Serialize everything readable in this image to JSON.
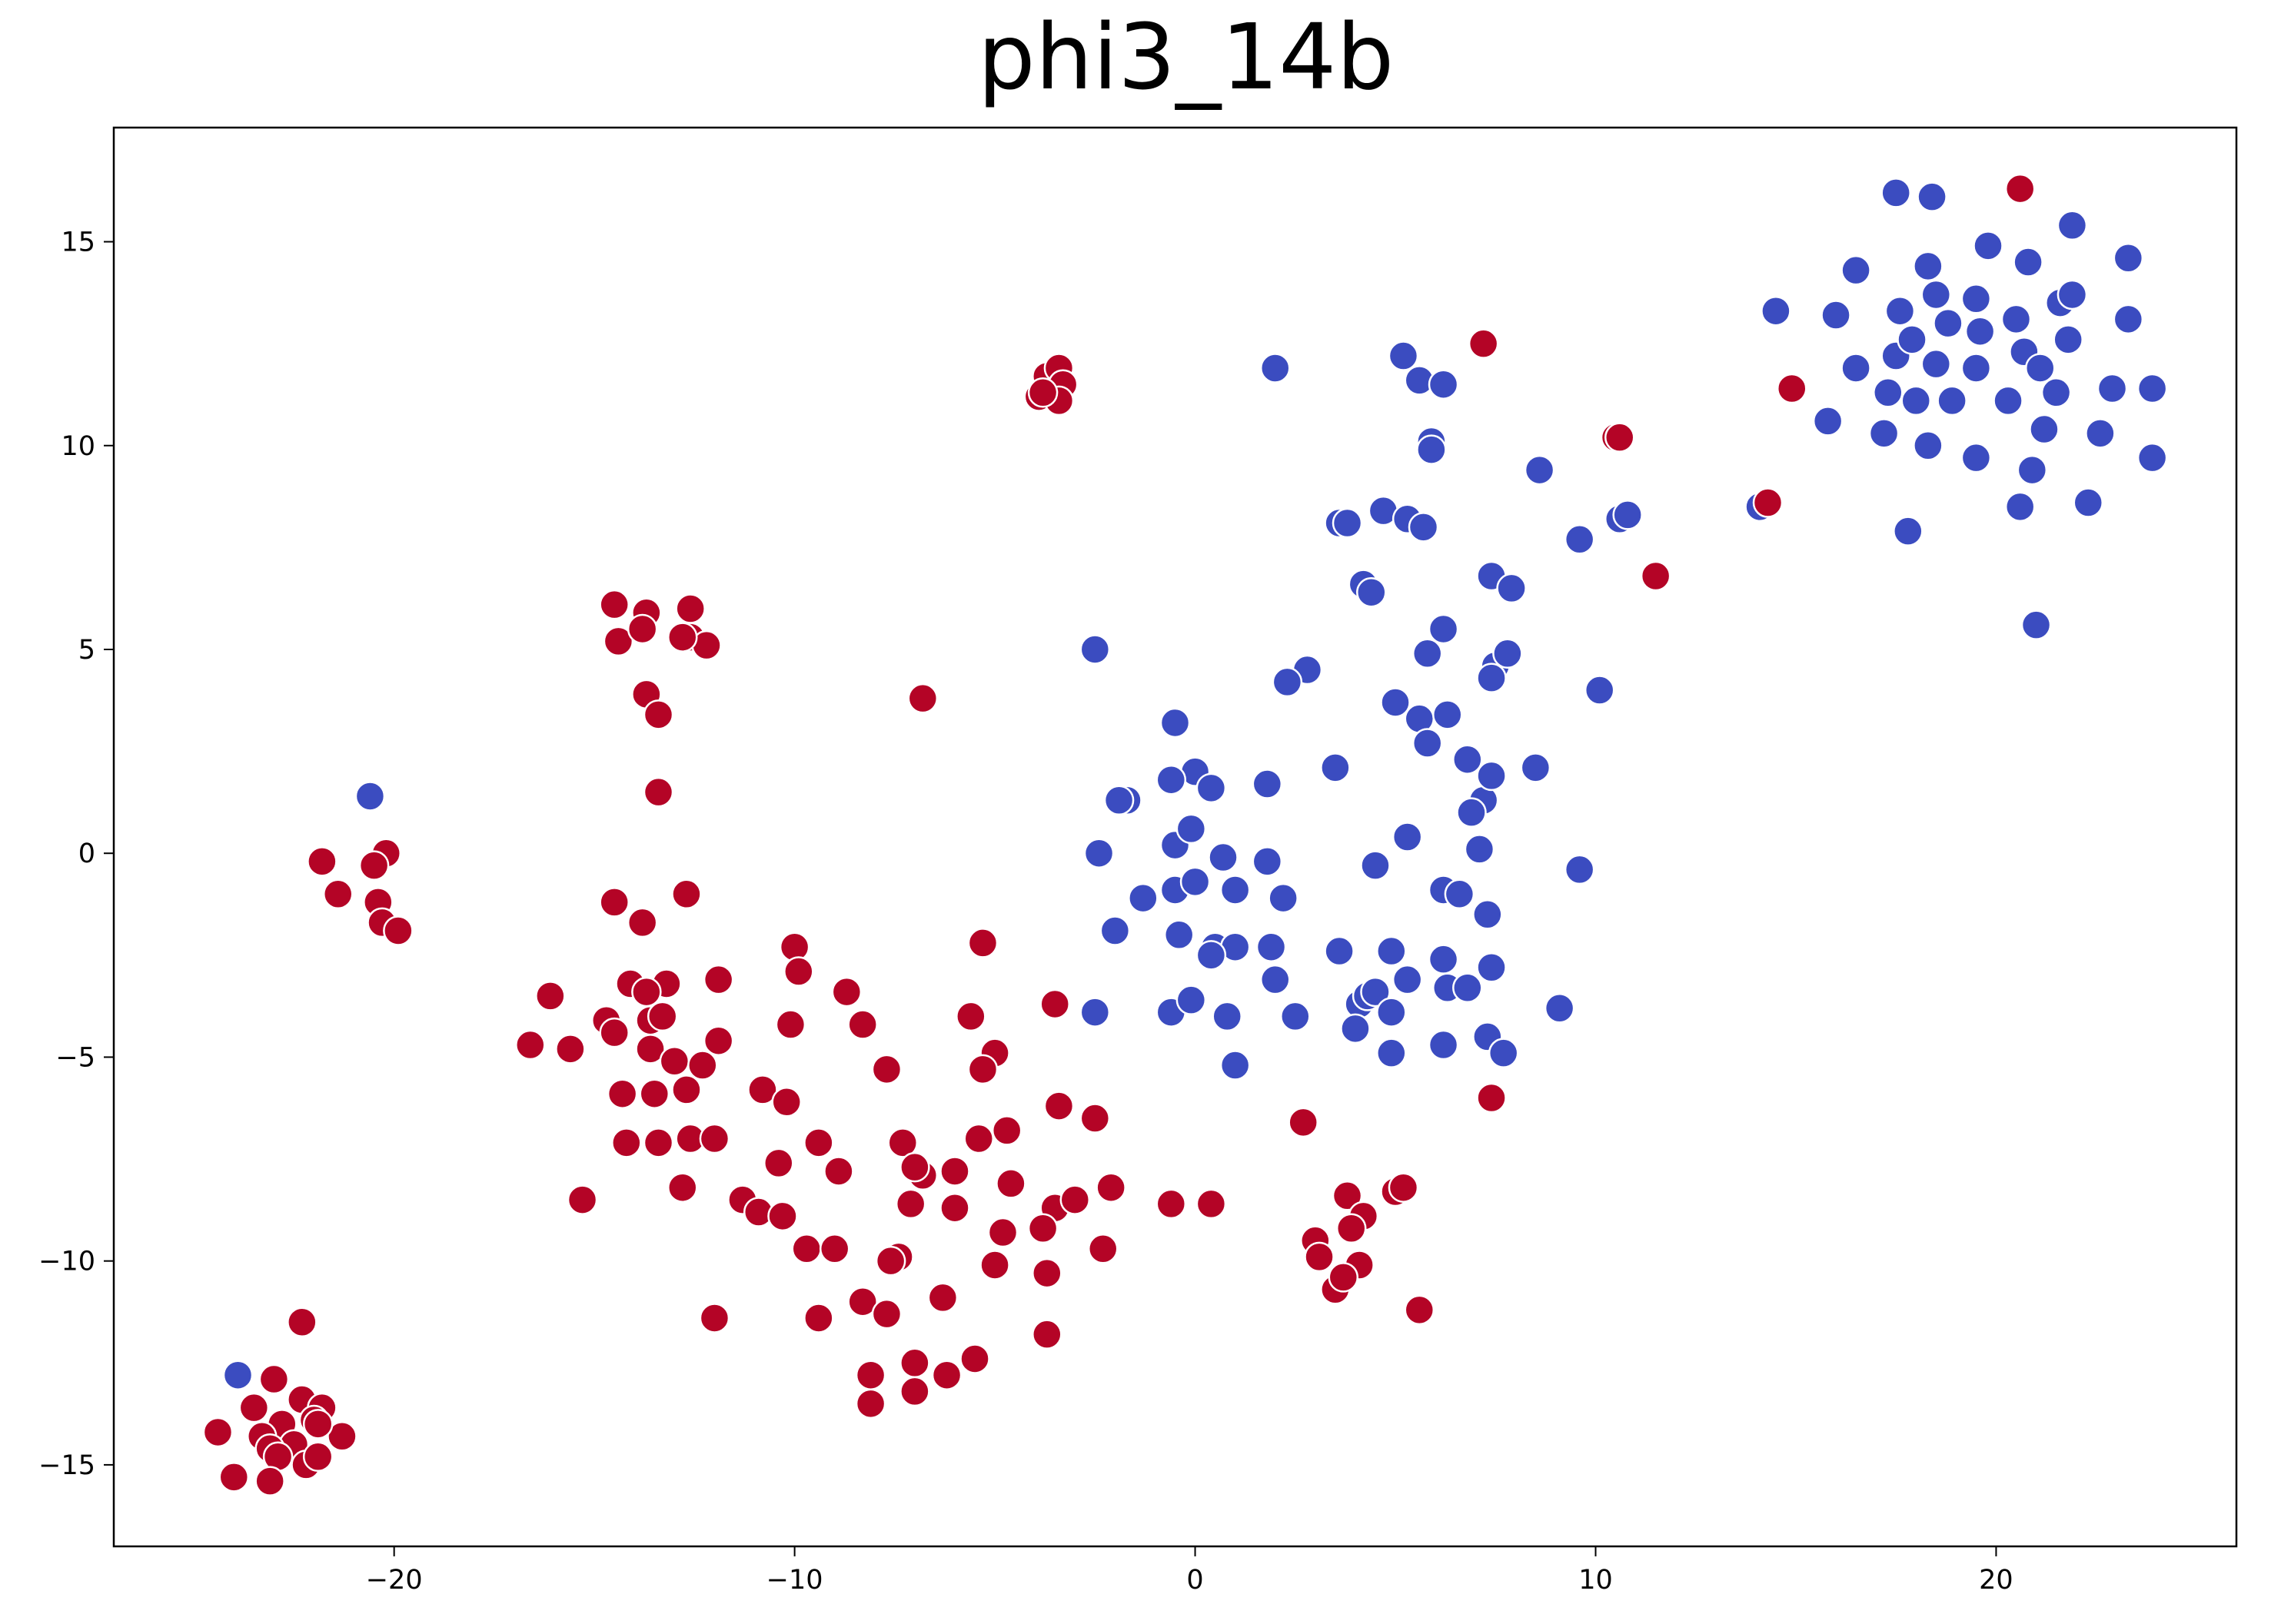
{
  "chart_data": {
    "type": "scatter",
    "title": "phi3_14b",
    "xlabel": "",
    "ylabel": "",
    "xlim": [
      -27,
      26
    ],
    "ylim": [
      -17,
      17.8
    ],
    "xticks": [
      -20,
      -10,
      0,
      10,
      20
    ],
    "yticks": [
      -15,
      -10,
      -5,
      0,
      5,
      10,
      15
    ],
    "xtick_labels": [
      "−20",
      "−10",
      "0",
      "10",
      "20"
    ],
    "ytick_labels": [
      "−15",
      "−10",
      "−5",
      "0",
      "5",
      "10",
      "15"
    ],
    "grid": false,
    "legend": "none",
    "colors": {
      "blue": "#3b4cc0",
      "red": "#b40426",
      "edge": "#ffffff"
    },
    "series": [
      {
        "color": "#3b4cc0",
        "points": [
          [
            -20.6,
            1.4
          ],
          [
            -23.9,
            -12.8
          ],
          [
            17.5,
            16.2
          ],
          [
            18.4,
            16.1
          ],
          [
            20.6,
            16.3
          ],
          [
            19.8,
            14.9
          ],
          [
            20.8,
            14.5
          ],
          [
            21.9,
            15.4
          ],
          [
            23.3,
            14.6
          ],
          [
            16.5,
            14.3
          ],
          [
            18.3,
            14.4
          ],
          [
            14.5,
            13.3
          ],
          [
            16.0,
            13.2
          ],
          [
            17.6,
            13.3
          ],
          [
            18.5,
            13.7
          ],
          [
            19.5,
            13.6
          ],
          [
            20.5,
            13.1
          ],
          [
            21.6,
            13.5
          ],
          [
            21.9,
            13.7
          ],
          [
            23.3,
            13.1
          ],
          [
            16.5,
            11.9
          ],
          [
            17.5,
            12.2
          ],
          [
            17.9,
            12.6
          ],
          [
            18.5,
            12.0
          ],
          [
            18.8,
            13.0
          ],
          [
            19.6,
            12.8
          ],
          [
            20.7,
            12.3
          ],
          [
            21.8,
            12.6
          ],
          [
            17.3,
            11.3
          ],
          [
            18.0,
            11.1
          ],
          [
            18.9,
            11.1
          ],
          [
            19.5,
            11.9
          ],
          [
            20.3,
            11.1
          ],
          [
            21.1,
            11.9
          ],
          [
            21.5,
            11.3
          ],
          [
            22.9,
            11.4
          ],
          [
            23.9,
            11.4
          ],
          [
            15.8,
            10.6
          ],
          [
            17.2,
            10.3
          ],
          [
            18.3,
            10.0
          ],
          [
            19.5,
            9.7
          ],
          [
            21.2,
            10.4
          ],
          [
            22.6,
            10.3
          ],
          [
            20.6,
            8.5
          ],
          [
            20.9,
            9.4
          ],
          [
            22.3,
            8.6
          ],
          [
            23.9,
            9.7
          ],
          [
            17.8,
            7.9
          ],
          [
            21.0,
            5.6
          ],
          [
            14.1,
            8.5
          ],
          [
            2.0,
            11.9
          ],
          [
            5.2,
            12.2
          ],
          [
            5.6,
            11.6
          ],
          [
            6.2,
            11.5
          ],
          [
            5.9,
            10.1
          ],
          [
            5.9,
            9.9
          ],
          [
            8.6,
            9.4
          ],
          [
            3.6,
            8.1
          ],
          [
            3.8,
            8.1
          ],
          [
            4.7,
            8.4
          ],
          [
            5.3,
            8.2
          ],
          [
            5.7,
            8.0
          ],
          [
            10.6,
            8.2
          ],
          [
            10.8,
            8.3
          ],
          [
            9.6,
            7.7
          ],
          [
            4.2,
            6.6
          ],
          [
            4.4,
            6.4
          ],
          [
            7.4,
            6.8
          ],
          [
            7.9,
            6.5
          ],
          [
            6.2,
            5.5
          ],
          [
            -2.5,
            5.0
          ],
          [
            5.8,
            4.9
          ],
          [
            7.5,
            4.6
          ],
          [
            7.8,
            4.9
          ],
          [
            2.8,
            4.5
          ],
          [
            2.3,
            4.2
          ],
          [
            7.4,
            4.3
          ],
          [
            10.1,
            4.0
          ],
          [
            5.0,
            3.7
          ],
          [
            5.6,
            3.3
          ],
          [
            6.3,
            3.4
          ],
          [
            -0.5,
            3.2
          ],
          [
            5.8,
            2.7
          ],
          [
            3.5,
            2.1
          ],
          [
            6.8,
            2.3
          ],
          [
            8.5,
            2.1
          ],
          [
            0.0,
            2.0
          ],
          [
            -0.6,
            1.8
          ],
          [
            0.4,
            1.6
          ],
          [
            1.8,
            1.7
          ],
          [
            -1.7,
            1.3
          ],
          [
            -1.9,
            1.3
          ],
          [
            7.2,
            1.3
          ],
          [
            7.4,
            1.9
          ],
          [
            6.9,
            1.0
          ],
          [
            -2.4,
            0.0
          ],
          [
            -0.5,
            0.2
          ],
          [
            -0.1,
            0.6
          ],
          [
            0.7,
            -0.1
          ],
          [
            1.8,
            -0.2
          ],
          [
            5.3,
            0.4
          ],
          [
            7.1,
            0.1
          ],
          [
            4.5,
            -0.3
          ],
          [
            9.6,
            -0.4
          ],
          [
            -1.3,
            -1.1
          ],
          [
            -0.5,
            -0.9
          ],
          [
            0.0,
            -0.7
          ],
          [
            1.0,
            -0.9
          ],
          [
            2.2,
            -1.1
          ],
          [
            6.2,
            -0.9
          ],
          [
            6.6,
            -1.0
          ],
          [
            7.3,
            -1.5
          ],
          [
            -2.0,
            -1.9
          ],
          [
            -0.4,
            -2.0
          ],
          [
            0.5,
            -2.3
          ],
          [
            1.0,
            -2.3
          ],
          [
            0.4,
            -2.5
          ],
          [
            1.9,
            -2.3
          ],
          [
            3.6,
            -2.4
          ],
          [
            4.9,
            -2.4
          ],
          [
            6.2,
            -2.6
          ],
          [
            2.0,
            -3.1
          ],
          [
            5.3,
            -3.1
          ],
          [
            6.3,
            -3.3
          ],
          [
            6.8,
            -3.3
          ],
          [
            7.4,
            -2.8
          ],
          [
            4.1,
            -3.7
          ],
          [
            4.3,
            -3.5
          ],
          [
            4.5,
            -3.4
          ],
          [
            -2.5,
            -3.9
          ],
          [
            -0.6,
            -3.9
          ],
          [
            -0.1,
            -3.6
          ],
          [
            0.8,
            -4.0
          ],
          [
            2.5,
            -4.0
          ],
          [
            4.9,
            -3.9
          ],
          [
            9.1,
            -3.8
          ],
          [
            4.0,
            -4.3
          ],
          [
            6.2,
            -4.7
          ],
          [
            7.3,
            -4.5
          ],
          [
            7.7,
            -4.9
          ],
          [
            4.9,
            -4.9
          ],
          [
            1.0,
            -5.2
          ]
        ]
      },
      {
        "color": "#b40426",
        "points": [
          [
            20.6,
            16.3
          ],
          [
            7.2,
            12.5
          ],
          [
            14.9,
            11.4
          ],
          [
            10.5,
            10.2
          ],
          [
            10.6,
            10.2
          ],
          [
            14.3,
            8.6
          ],
          [
            11.5,
            6.8
          ],
          [
            -3.9,
            11.2
          ],
          [
            -3.7,
            11.7
          ],
          [
            -3.4,
            11.9
          ],
          [
            -3.3,
            11.5
          ],
          [
            -3.4,
            11.1
          ],
          [
            -3.8,
            11.3
          ],
          [
            -14.5,
            6.1
          ],
          [
            -13.7,
            5.9
          ],
          [
            -12.6,
            6.0
          ],
          [
            -14.4,
            5.2
          ],
          [
            -13.8,
            5.5
          ],
          [
            -12.6,
            5.3
          ],
          [
            -12.2,
            5.1
          ],
          [
            -12.8,
            5.3
          ],
          [
            -13.7,
            3.9
          ],
          [
            -13.4,
            3.4
          ],
          [
            -6.8,
            3.8
          ],
          [
            -13.4,
            1.5
          ],
          [
            -20.2,
            0.0
          ],
          [
            -21.8,
            -0.2
          ],
          [
            -20.5,
            -0.3
          ],
          [
            -21.4,
            -1.0
          ],
          [
            -20.4,
            -1.2
          ],
          [
            -20.3,
            -1.7
          ],
          [
            -19.9,
            -1.9
          ],
          [
            -14.5,
            -1.2
          ],
          [
            -13.8,
            -1.7
          ],
          [
            -12.7,
            -1.0
          ],
          [
            -10.0,
            -2.3
          ],
          [
            -9.9,
            -2.9
          ],
          [
            -5.3,
            -2.2
          ],
          [
            -14.1,
            -3.2
          ],
          [
            -13.2,
            -3.2
          ],
          [
            -11.9,
            -3.1
          ],
          [
            -13.7,
            -3.4
          ],
          [
            -16.1,
            -3.5
          ],
          [
            -8.7,
            -3.4
          ],
          [
            -3.5,
            -3.7
          ],
          [
            -14.7,
            -4.1
          ],
          [
            -13.6,
            -4.1
          ],
          [
            -13.3,
            -4.0
          ],
          [
            -10.1,
            -4.2
          ],
          [
            -8.3,
            -4.2
          ],
          [
            -5.6,
            -4.0
          ],
          [
            -14.5,
            -4.4
          ],
          [
            -16.6,
            -4.7
          ],
          [
            -15.6,
            -4.8
          ],
          [
            -13.6,
            -4.8
          ],
          [
            -11.9,
            -4.6
          ],
          [
            -5.0,
            -4.9
          ],
          [
            -13.0,
            -5.1
          ],
          [
            -12.3,
            -5.2
          ],
          [
            -5.3,
            -5.3
          ],
          [
            -7.7,
            -5.3
          ],
          [
            -14.3,
            -5.9
          ],
          [
            -13.5,
            -5.9
          ],
          [
            -12.7,
            -5.8
          ],
          [
            -10.8,
            -5.8
          ],
          [
            -10.2,
            -6.1
          ],
          [
            -3.4,
            -6.2
          ],
          [
            -2.5,
            -6.5
          ],
          [
            -5.4,
            -7.0
          ],
          [
            -4.7,
            -6.8
          ],
          [
            -7.3,
            -7.1
          ],
          [
            -14.2,
            -7.1
          ],
          [
            -13.4,
            -7.1
          ],
          [
            -12.6,
            -7.0
          ],
          [
            -12.0,
            -7.0
          ],
          [
            -9.4,
            -7.1
          ],
          [
            -10.4,
            -7.6
          ],
          [
            -8.9,
            -7.8
          ],
          [
            -6.8,
            -7.9
          ],
          [
            -6.0,
            -7.8
          ],
          [
            -7.0,
            -7.7
          ],
          [
            -4.6,
            -8.1
          ],
          [
            -12.8,
            -8.2
          ],
          [
            -15.3,
            -8.5
          ],
          [
            -11.3,
            -8.5
          ],
          [
            -10.9,
            -8.8
          ],
          [
            -10.3,
            -8.9
          ],
          [
            -7.1,
            -8.6
          ],
          [
            -6.0,
            -8.7
          ],
          [
            -3.5,
            -8.7
          ],
          [
            -3.0,
            -8.5
          ],
          [
            -2.1,
            -8.2
          ],
          [
            -0.6,
            -8.6
          ],
          [
            0.4,
            -8.6
          ],
          [
            -4.8,
            -9.3
          ],
          [
            -3.8,
            -9.2
          ],
          [
            -9.7,
            -9.7
          ],
          [
            -9.0,
            -9.7
          ],
          [
            -7.4,
            -9.9
          ],
          [
            -7.6,
            -10.0
          ],
          [
            -2.3,
            -9.7
          ],
          [
            -5.0,
            -10.1
          ],
          [
            -3.7,
            -10.3
          ],
          [
            -8.3,
            -11.0
          ],
          [
            -7.7,
            -11.3
          ],
          [
            -6.3,
            -10.9
          ],
          [
            -9.4,
            -11.4
          ],
          [
            -12.0,
            -11.4
          ],
          [
            -3.7,
            -11.8
          ],
          [
            -8.1,
            -12.8
          ],
          [
            -7.0,
            -12.5
          ],
          [
            -6.2,
            -12.8
          ],
          [
            -5.5,
            -12.4
          ],
          [
            -8.1,
            -13.5
          ],
          [
            -7.0,
            -13.2
          ],
          [
            2.7,
            -6.6
          ],
          [
            7.4,
            -6.0
          ],
          [
            3.8,
            -8.4
          ],
          [
            4.2,
            -8.9
          ],
          [
            3.9,
            -9.2
          ],
          [
            5.0,
            -8.3
          ],
          [
            5.2,
            -8.2
          ],
          [
            3.0,
            -9.5
          ],
          [
            3.1,
            -9.9
          ],
          [
            4.1,
            -10.1
          ],
          [
            3.5,
            -10.7
          ],
          [
            3.7,
            -10.4
          ],
          [
            5.6,
            -11.2
          ],
          [
            -22.3,
            -11.5
          ],
          [
            -23.0,
            -12.9
          ],
          [
            -22.3,
            -13.4
          ],
          [
            -23.5,
            -13.6
          ],
          [
            -21.8,
            -13.6
          ],
          [
            -22.8,
            -14.0
          ],
          [
            -22.0,
            -13.9
          ],
          [
            -24.4,
            -14.2
          ],
          [
            -23.3,
            -14.3
          ],
          [
            -21.3,
            -14.3
          ],
          [
            -22.5,
            -14.5
          ],
          [
            -23.1,
            -14.6
          ],
          [
            -22.9,
            -14.8
          ],
          [
            -22.2,
            -15.0
          ],
          [
            -21.9,
            -14.8
          ],
          [
            -24.0,
            -15.3
          ],
          [
            -23.1,
            -15.4
          ],
          [
            -21.9,
            -14.0
          ]
        ]
      }
    ]
  }
}
